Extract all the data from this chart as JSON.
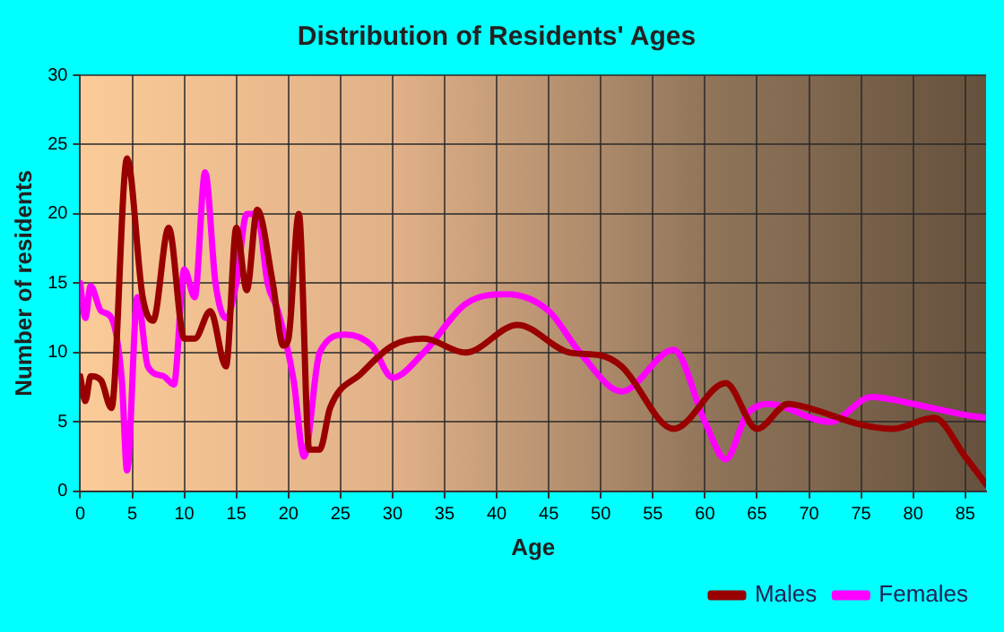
{
  "chart_data": {
    "type": "line",
    "title": "Distribution of Residents' Ages",
    "xlabel": "Age",
    "ylabel": "Number of residents",
    "xlim": [
      0,
      87
    ],
    "xticks": [
      0,
      5,
      10,
      15,
      20,
      25,
      30,
      35,
      40,
      45,
      50,
      55,
      60,
      65,
      70,
      75,
      80,
      85
    ],
    "ylim": [
      0,
      30
    ],
    "yticks": [
      0,
      5,
      10,
      15,
      20,
      25,
      30
    ],
    "grid": true,
    "legend": "bottom right",
    "marker": "none",
    "line_style": "solid",
    "series": [
      {
        "name": "Males",
        "color": "#990000",
        "x": [
          0,
          0.5,
          1,
          2,
          3,
          4.5,
          6,
          7,
          8.5,
          10,
          11,
          12.5,
          14,
          15,
          16,
          17,
          18.5,
          19.5,
          20,
          21,
          22,
          23,
          24,
          27,
          30,
          33,
          37,
          42,
          47,
          50,
          52,
          57,
          62,
          65,
          68,
          70,
          75,
          78,
          82,
          85,
          87
        ],
        "values": [
          8.3,
          6.5,
          8.3,
          8,
          6,
          24,
          14,
          12.3,
          19,
          11,
          11,
          13,
          9,
          19,
          14.5,
          20.3,
          15,
          10.5,
          11,
          20,
          3,
          3,
          6,
          8.5,
          10.5,
          11,
          10,
          12,
          10,
          9.8,
          9,
          4.5,
          7.8,
          4.5,
          6.3,
          6,
          4.8,
          4.5,
          5.3,
          2.5,
          0.5
        ]
      },
      {
        "name": "Females",
        "color": "#ff00ff",
        "x": [
          0,
          0.5,
          1,
          2,
          3,
          4,
          4.5,
          5.5,
          6.5,
          8,
          9,
          10,
          11,
          12,
          13,
          14,
          15,
          16,
          17,
          18,
          19,
          20.5,
          21.5,
          23,
          25.5,
          28,
          30,
          33,
          37,
          41,
          45,
          48,
          52,
          57,
          60,
          62,
          64,
          66,
          72,
          76,
          80,
          85,
          87
        ],
        "values": [
          15,
          12.5,
          14.8,
          13,
          12.5,
          8,
          1.5,
          14,
          9,
          8.3,
          7.7,
          16,
          14,
          23,
          15,
          12.5,
          15,
          20,
          20,
          15,
          13,
          8,
          2.5,
          10,
          11.3,
          10.5,
          8.2,
          10,
          13.5,
          14.2,
          13,
          10,
          7.2,
          10.2,
          5,
          2.3,
          5.5,
          6.3,
          5,
          6.8,
          6.3,
          5.5,
          5.3
        ]
      }
    ]
  }
}
